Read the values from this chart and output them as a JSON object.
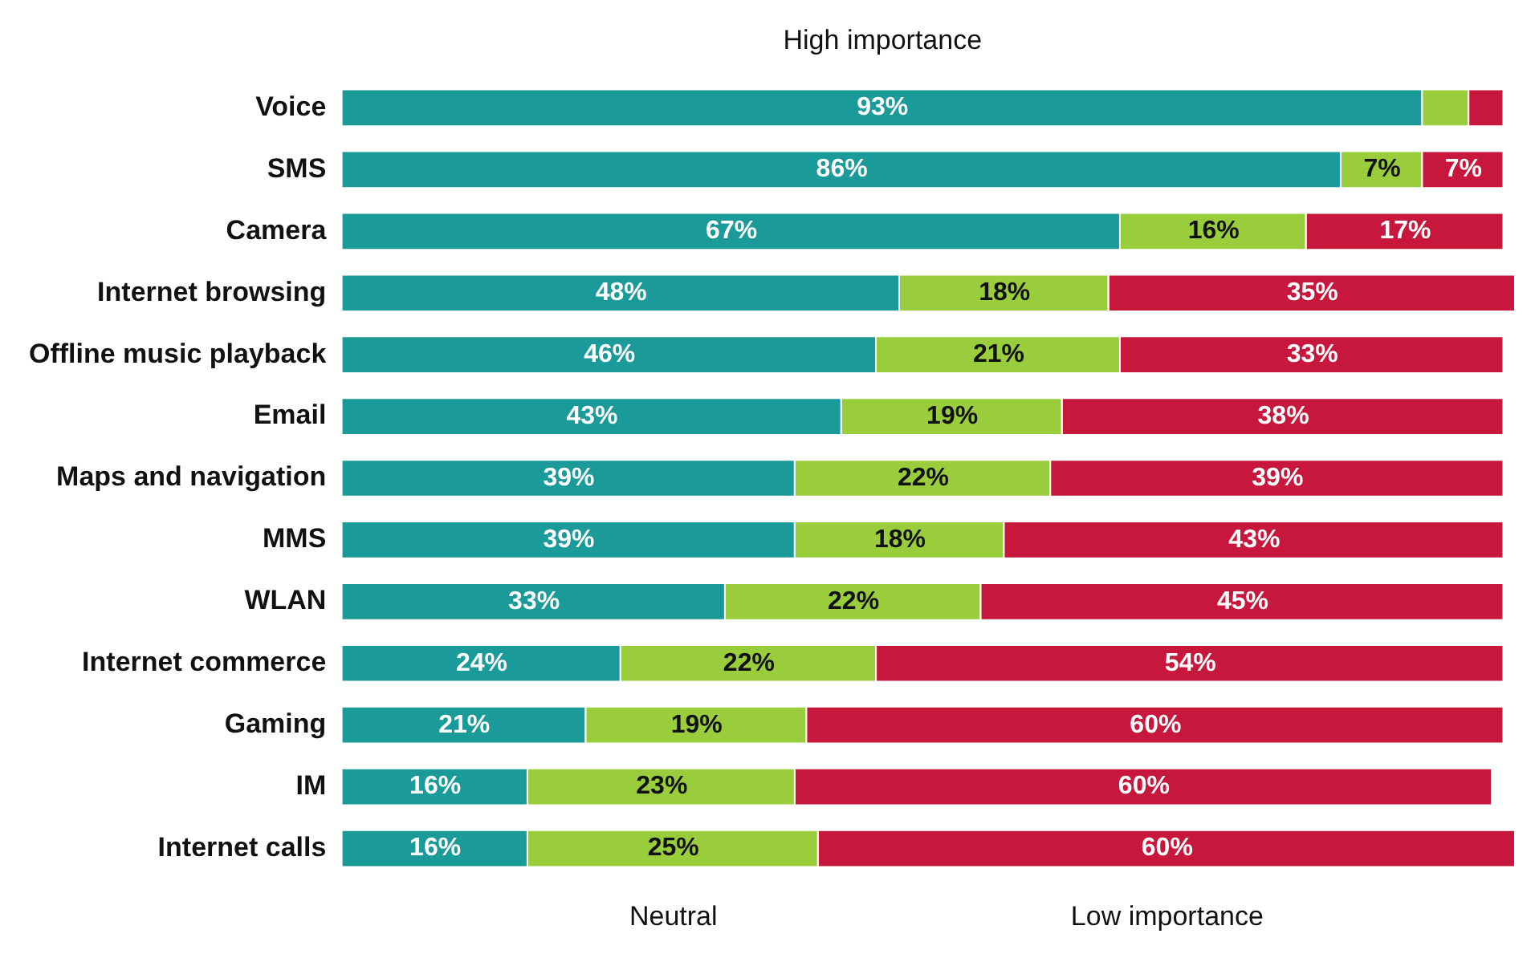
{
  "chart_data": {
    "type": "bar",
    "orientation": "horizontal",
    "stacked": true,
    "categories": [
      "Voice",
      "SMS",
      "Camera",
      "Internet browsing",
      "Offline music playback",
      "Email",
      "Maps and navigation",
      "MMS",
      "WLAN",
      "Internet commerce",
      "Gaming",
      "IM",
      "Internet calls"
    ],
    "series": [
      {
        "name": "High importance",
        "color": "#1b9a9a",
        "values": [
          93,
          86,
          67,
          48,
          46,
          43,
          39,
          39,
          33,
          24,
          21,
          16,
          16
        ],
        "value_labels": [
          "93%",
          "86%",
          "67%",
          "48%",
          "46%",
          "43%",
          "39%",
          "39%",
          "33%",
          "24%",
          "21%",
          "16%",
          "16%"
        ]
      },
      {
        "name": "Neutral",
        "color": "#9acd3c",
        "values": [
          4,
          7,
          16,
          18,
          21,
          19,
          22,
          18,
          22,
          22,
          19,
          23,
          25
        ],
        "value_labels": [
          null,
          "7%",
          "16%",
          "18%",
          "21%",
          "19%",
          "22%",
          "18%",
          "22%",
          "22%",
          "19%",
          "23%",
          "25%"
        ]
      },
      {
        "name": "Low importance",
        "color": "#c8173c",
        "values": [
          3,
          7,
          17,
          35,
          33,
          38,
          39,
          43,
          45,
          54,
          60,
          60,
          60
        ],
        "value_labels": [
          null,
          "7%",
          "17%",
          "35%",
          "33%",
          "38%",
          "39%",
          "43%",
          "45%",
          "54%",
          "60%",
          "60%",
          "60%"
        ]
      }
    ],
    "xlim": [
      0,
      101
    ],
    "tick_labels": "y",
    "grid": false,
    "legend": false
  }
}
